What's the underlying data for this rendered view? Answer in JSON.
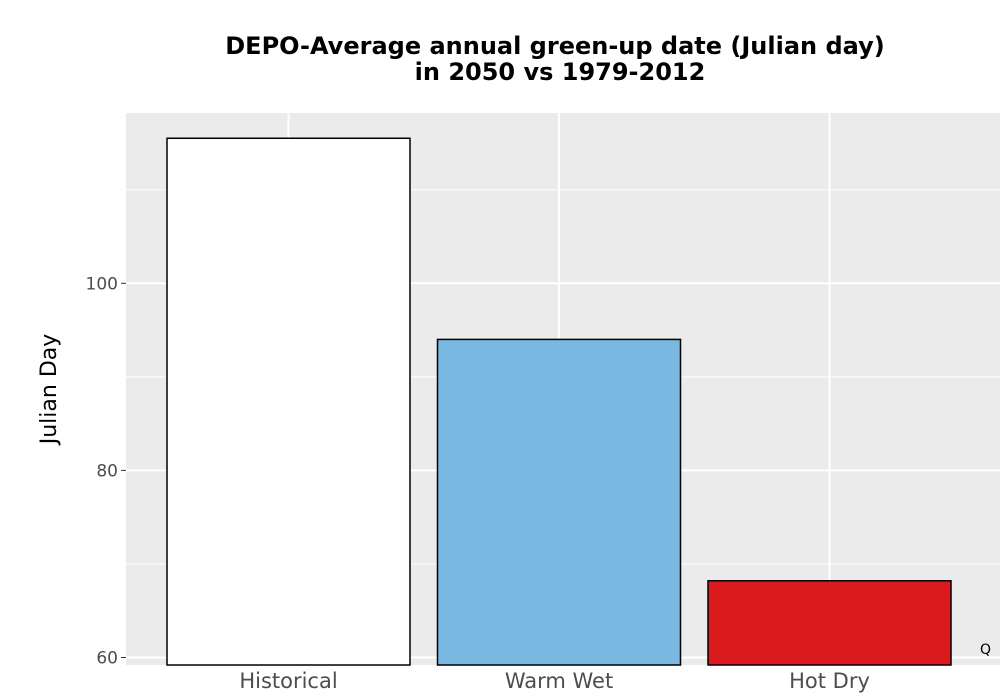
{
  "chart_data": {
    "type": "bar",
    "title_lines": [
      "DEPO-Average annual green-up date (Julian day)",
      "in 2050 vs 1979-2012"
    ],
    "xlabel": "",
    "ylabel": "Julian Day",
    "categories": [
      "Historical",
      "Warm Wet",
      "Hot Dry"
    ],
    "values": [
      115.5,
      94,
      68.2
    ],
    "bar_colors": [
      "#ffffff",
      "#79b8e1",
      "#db1a1e"
    ],
    "bar_outline_color": "#000000",
    "panel_background": "#ebebeb",
    "grid_color": "#ffffff",
    "grid": true,
    "ylim": [
      59.2,
      118.2
    ],
    "yticks": [
      60,
      80,
      100
    ],
    "y_minor_ticks": [
      70,
      90,
      110
    ],
    "legend": "none",
    "corner_text": "Q"
  }
}
